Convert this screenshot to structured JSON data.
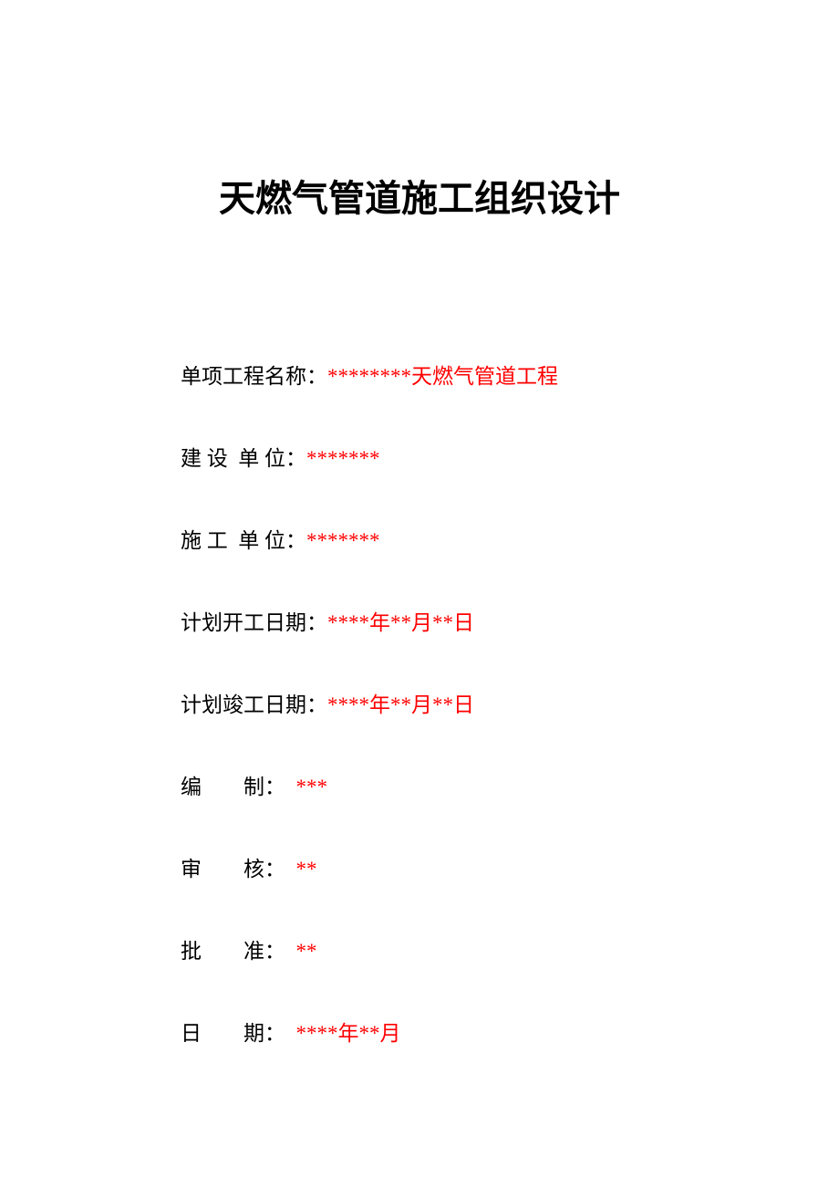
{
  "title": "天燃气管道施工组织设计",
  "fields": {
    "project_name": {
      "label": "单项工程名称：",
      "value": "********",
      "suffix": "天燃气管道工程"
    },
    "construction_unit": {
      "label": "建 设  单 位：",
      "value": "*******",
      "suffix": ""
    },
    "contractor_unit": {
      "label": "施 工  单 位：",
      "value": "*******",
      "suffix": ""
    },
    "planned_start": {
      "label": "计划开工日期：",
      "value": "****年**月**日",
      "suffix": ""
    },
    "planned_end": {
      "label": "计划竣工日期：",
      "value": "****年**月**日",
      "suffix": ""
    },
    "compiled_by": {
      "label": "编        制：  ",
      "value": "***",
      "suffix": ""
    },
    "reviewed_by": {
      "label": "审        核：  ",
      "value": "**",
      "suffix": ""
    },
    "approved_by": {
      "label": "批        准：  ",
      "value": "**",
      "suffix": ""
    },
    "date": {
      "label": "日        期：  ",
      "value": "****年**月",
      "suffix": ""
    }
  },
  "colors": {
    "title_color": "#000000",
    "label_color": "#000000",
    "value_color": "#ff0000",
    "background": "#ffffff"
  },
  "typography": {
    "title_fontsize": 40,
    "field_fontsize": 23,
    "font_family": "KaiTi"
  }
}
